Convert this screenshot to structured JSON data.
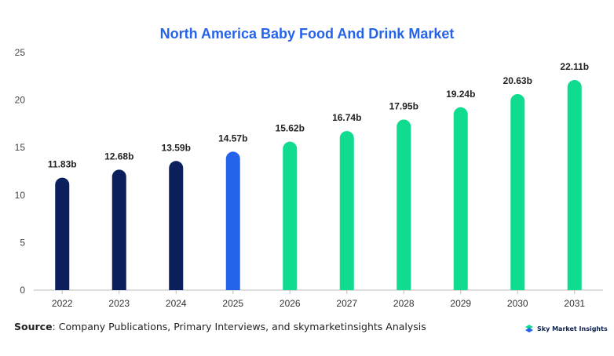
{
  "colors": {
    "title": "#2563eb",
    "historic": "#0b1f5c",
    "current": "#2563eb",
    "forecast": "#0fdc8f"
  },
  "chart_data": {
    "type": "bar",
    "title": "North America Baby Food And Drink Market",
    "categories": [
      "2022",
      "2023",
      "2024",
      "2025",
      "2026",
      "2027",
      "2028",
      "2029",
      "2030",
      "2031"
    ],
    "values": [
      11.83,
      12.68,
      13.59,
      14.57,
      15.62,
      16.74,
      17.95,
      19.24,
      20.63,
      22.11
    ],
    "data_labels": [
      "11.83b",
      "12.68b",
      "13.59b",
      "14.57b",
      "15.62b",
      "16.74b",
      "17.95b",
      "19.24b",
      "20.63b",
      "22.11b"
    ],
    "bar_colors": [
      "historic",
      "historic",
      "historic",
      "current",
      "forecast",
      "forecast",
      "forecast",
      "forecast",
      "forecast",
      "forecast"
    ],
    "ylim": [
      0,
      25
    ],
    "yticks": [
      0,
      5,
      10,
      15,
      20,
      25
    ],
    "xlabel": "",
    "ylabel": "",
    "grid": false,
    "legend": "none"
  },
  "source": {
    "label": "Source",
    "text": ": Company Publications, Primary Interviews, and skymarketinsights Analysis"
  },
  "logo": {
    "text": "Sky Market Insights",
    "icon": "sky-market-insights-logo-icon"
  }
}
